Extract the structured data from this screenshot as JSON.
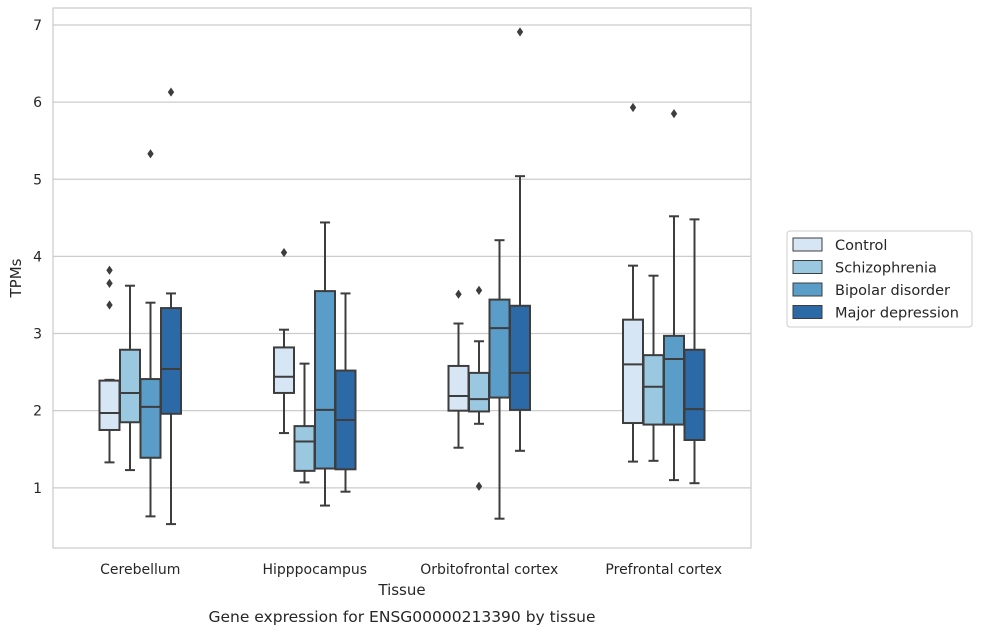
{
  "caption": "Gene expression for ENSG00000213390 by tissue",
  "chart_data": {
    "type": "boxplot",
    "xlabel": "Tissue",
    "ylabel": "TPMs",
    "ylim": [
      0.22,
      7.22
    ],
    "yticks": [
      1,
      2,
      3,
      4,
      5,
      6,
      7
    ],
    "grid": "horizontal",
    "legend_position": "right",
    "categories": [
      "Cerebellum",
      "Hipppocampus",
      "Orbitofrontal cortex",
      "Prefrontal cortex"
    ],
    "series": [
      {
        "name": "Control",
        "color": "#d6e6f4",
        "boxes": [
          {
            "whisker_low": 1.33,
            "q1": 1.75,
            "median": 1.97,
            "q3": 2.39,
            "whisker_high": 2.4,
            "outliers": [
              3.37,
              3.65,
              3.82
            ]
          },
          {
            "whisker_low": 1.71,
            "q1": 2.23,
            "median": 2.44,
            "q3": 2.82,
            "whisker_high": 3.05,
            "outliers": [
              4.05
            ]
          },
          {
            "whisker_low": 1.52,
            "q1": 2.0,
            "median": 2.19,
            "q3": 2.58,
            "whisker_high": 3.13,
            "outliers": [
              3.51
            ]
          },
          {
            "whisker_low": 1.34,
            "q1": 1.84,
            "median": 2.6,
            "q3": 3.18,
            "whisker_high": 3.88,
            "outliers": [
              5.93
            ]
          }
        ]
      },
      {
        "name": "Schizophrenia",
        "color": "#9ac8e0",
        "boxes": [
          {
            "whisker_low": 1.23,
            "q1": 1.85,
            "median": 2.23,
            "q3": 2.79,
            "whisker_high": 3.62,
            "outliers": []
          },
          {
            "whisker_low": 1.07,
            "q1": 1.22,
            "median": 1.6,
            "q3": 1.8,
            "whisker_high": 2.61,
            "outliers": []
          },
          {
            "whisker_low": 1.83,
            "q1": 1.99,
            "median": 2.15,
            "q3": 2.49,
            "whisker_high": 2.9,
            "outliers": [
              1.02,
              3.56
            ]
          },
          {
            "whisker_low": 1.35,
            "q1": 1.82,
            "median": 2.31,
            "q3": 2.72,
            "whisker_high": 3.75,
            "outliers": []
          }
        ]
      },
      {
        "name": "Bipolar disorder",
        "color": "#5a9dc8",
        "boxes": [
          {
            "whisker_low": 0.63,
            "q1": 1.39,
            "median": 2.05,
            "q3": 2.41,
            "whisker_high": 3.4,
            "outliers": [
              5.33
            ]
          },
          {
            "whisker_low": 0.77,
            "q1": 1.25,
            "median": 2.01,
            "q3": 3.55,
            "whisker_high": 4.44,
            "outliers": []
          },
          {
            "whisker_low": 0.6,
            "q1": 2.17,
            "median": 3.07,
            "q3": 3.44,
            "whisker_high": 4.21,
            "outliers": []
          },
          {
            "whisker_low": 1.1,
            "q1": 1.82,
            "median": 2.67,
            "q3": 2.97,
            "whisker_high": 4.52,
            "outliers": [
              5.85
            ]
          }
        ]
      },
      {
        "name": "Major depression",
        "color": "#2b6aa6",
        "boxes": [
          {
            "whisker_low": 0.53,
            "q1": 1.96,
            "median": 2.54,
            "q3": 3.33,
            "whisker_high": 3.52,
            "outliers": [
              6.13
            ]
          },
          {
            "whisker_low": 0.95,
            "q1": 1.24,
            "median": 1.88,
            "q3": 2.52,
            "whisker_high": 3.52,
            "outliers": []
          },
          {
            "whisker_low": 1.48,
            "q1": 2.01,
            "median": 2.49,
            "q3": 3.36,
            "whisker_high": 5.04,
            "outliers": [
              6.91
            ]
          },
          {
            "whisker_low": 1.06,
            "q1": 1.62,
            "median": 2.02,
            "q3": 2.79,
            "whisker_high": 4.48,
            "outliers": []
          }
        ]
      }
    ]
  }
}
